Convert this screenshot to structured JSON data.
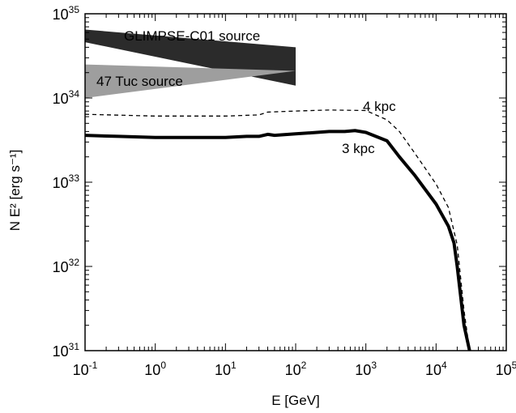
{
  "chart_data": {
    "type": "line",
    "xlabel": "E [GeV]",
    "ylabel": "N E² [erg s⁻¹]",
    "x_scale": "log",
    "y_scale": "log",
    "xlim": [
      0.1,
      100000
    ],
    "ylim": [
      1e+31,
      1e+35
    ],
    "grid": false,
    "x_ticks": [
      {
        "base": "10",
        "exp": "-1",
        "value": 0.1
      },
      {
        "base": "10",
        "exp": "0",
        "value": 1
      },
      {
        "base": "10",
        "exp": "1",
        "value": 10
      },
      {
        "base": "10",
        "exp": "2",
        "value": 100
      },
      {
        "base": "10",
        "exp": "3",
        "value": 1000
      },
      {
        "base": "10",
        "exp": "4",
        "value": 10000
      },
      {
        "base": "10",
        "exp": "5",
        "value": 100000
      }
    ],
    "y_ticks": [
      {
        "base": "10",
        "exp": "31",
        "value": 1e+31
      },
      {
        "base": "10",
        "exp": "32",
        "value": 1e+32
      },
      {
        "base": "10",
        "exp": "33",
        "value": 1e+33
      },
      {
        "base": "10",
        "exp": "34",
        "value": 1e+34
      },
      {
        "base": "10",
        "exp": "35",
        "value": 1e+35
      }
    ],
    "series": [
      {
        "label": "3 kpc",
        "style": "solid-thick",
        "color": "#000000",
        "x": [
          0.1,
          0.3,
          1,
          3,
          10,
          20,
          30,
          40,
          50,
          100,
          200,
          300,
          500,
          700,
          1000,
          2000,
          3000,
          5000,
          10000,
          15000,
          18000,
          20000,
          25000,
          30000
        ],
        "y": [
          3.6e+33,
          3.5e+33,
          3.4e+33,
          3.4e+33,
          3.4e+33,
          3.5e+33,
          3.5e+33,
          3.7e+33,
          3.6e+33,
          3.75e+33,
          3.9e+33,
          4e+33,
          4e+33,
          4.1e+33,
          3.9e+33,
          3.1e+33,
          2e+33,
          1.2e+33,
          5.5e+32,
          3e+32,
          1.9e+32,
          1e+32,
          2e+31,
          1e+31
        ]
      },
      {
        "label": "4 kpc",
        "style": "dashed",
        "color": "#000000",
        "x": [
          0.1,
          1,
          10,
          30,
          40,
          100,
          300,
          1000,
          2000,
          3000,
          5000,
          10000,
          15000,
          20000,
          25000,
          30000
        ],
        "y": [
          6.4e+33,
          6.1e+33,
          6.1e+33,
          6.3e+33,
          6.8e+33,
          7e+33,
          7.2e+33,
          7.1e+33,
          5.5e+33,
          4e+33,
          2.2e+33,
          9.5e+32,
          5e+32,
          1.8e+32,
          3e+31,
          1e+31
        ]
      }
    ],
    "bands": [
      {
        "label": "GLIMPSE-C01 source",
        "fill": "#2b2b2b",
        "x": [
          0.1,
          100
        ],
        "upper": [
          6.5e+34,
          4e+34
        ],
        "lower": [
          4.6e+34,
          1.4e+34
        ]
      },
      {
        "label": "47 Tuc source",
        "fill": "#9e9e9e",
        "x": [
          0.1,
          100
        ],
        "upper": [
          2.5e+34,
          2.1e+34
        ],
        "lower": [
          1e+34,
          2.1e+34
        ]
      }
    ],
    "annotations": [
      "GLIMPSE-C01 source",
      "47 Tuc source",
      "4 kpc",
      "3 kpc"
    ]
  }
}
